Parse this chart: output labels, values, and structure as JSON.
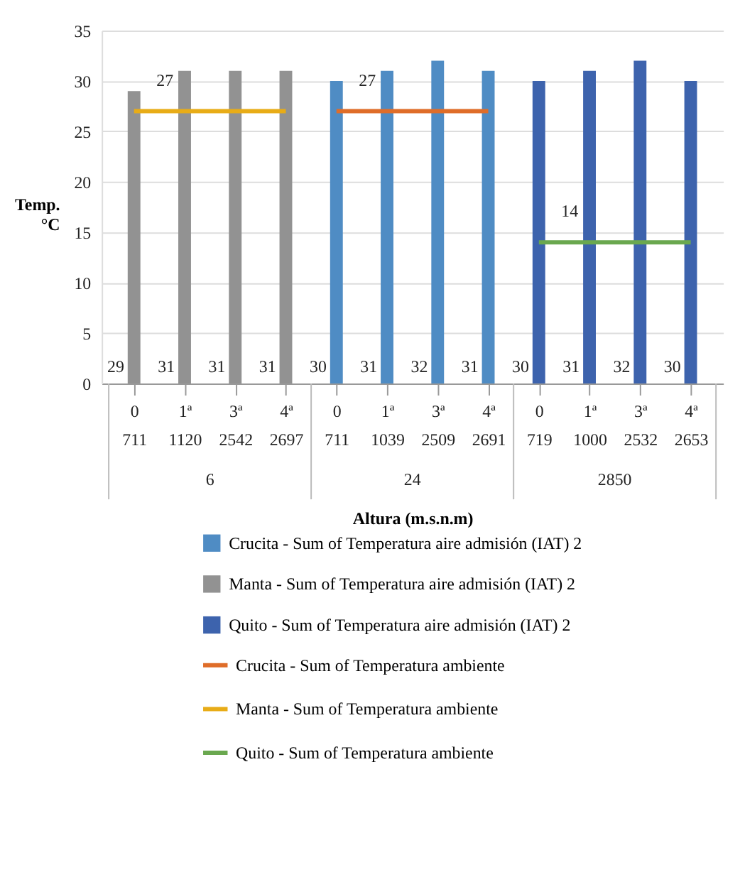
{
  "chart_data": {
    "type": "bar",
    "categories": [
      "0\n711",
      "1ª\n1120",
      "3ª\n2542",
      "4ª\n2697",
      "0\n711",
      "1ª\n1039",
      "3ª\n2509",
      "4ª\n2691",
      "0\n719",
      "1ª\n1000",
      "3ª\n2532",
      "4ª\n2653"
    ],
    "series": [
      {
        "name": "Crucita - Sum of Temperatura aire admisión (IAT) 2",
        "color": "#4f8cc4",
        "values": [
          null,
          null,
          null,
          null,
          30,
          31,
          32,
          31,
          null,
          null,
          null,
          null
        ],
        "value_labels": [
          null,
          null,
          null,
          null,
          "30",
          "31",
          "32",
          "31",
          null,
          null,
          null,
          null
        ]
      },
      {
        "name": "Manta - Sum of Temperatura aire admisión (IAT) 2",
        "color": "#929292",
        "values": [
          29,
          31,
          31,
          31,
          null,
          null,
          null,
          null,
          null,
          null,
          null,
          null
        ],
        "value_labels": [
          "29",
          "31",
          "31",
          "31",
          null,
          null,
          null,
          null,
          null,
          null,
          null,
          null
        ]
      },
      {
        "name": "Quito - Sum of Temperatura aire admisión (IAT) 2",
        "color": "#3d63ad",
        "values": [
          null,
          null,
          null,
          null,
          null,
          null,
          null,
          null,
          30,
          31,
          32,
          30
        ],
        "value_labels": [
          null,
          null,
          null,
          null,
          null,
          null,
          null,
          null,
          "30",
          "31",
          "32",
          "30"
        ]
      },
      {
        "name": "Crucita - Sum of Temperatura ambiente",
        "type": "line",
        "color": "#df6d29",
        "values": [
          null,
          null,
          null,
          null,
          27,
          27,
          27,
          27,
          null,
          null,
          null,
          null
        ],
        "value_labels": [
          null,
          null,
          null,
          null,
          null,
          "27",
          null,
          null,
          null,
          null,
          null,
          null
        ]
      },
      {
        "name": "Manta - Sum of Temperatura ambiente",
        "type": "line",
        "color": "#e8ac17",
        "values": [
          27,
          27,
          27,
          27,
          null,
          null,
          null,
          null,
          null,
          null,
          null,
          null
        ],
        "value_labels": [
          null,
          "27",
          null,
          null,
          null,
          null,
          null,
          null,
          null,
          null,
          null,
          null
        ]
      },
      {
        "name": "Quito - Sum of Temperatura ambiente",
        "type": "line",
        "color": "#6aa84f",
        "values": [
          null,
          null,
          null,
          null,
          null,
          null,
          null,
          null,
          14,
          14,
          14,
          14
        ],
        "value_labels": [
          null,
          null,
          null,
          null,
          null,
          null,
          null,
          null,
          null,
          "14",
          null,
          null
        ]
      }
    ],
    "ylim": [
      0,
      35
    ],
    "yticks": [
      0,
      5,
      10,
      15,
      20,
      25,
      30,
      35
    ],
    "ylabel": "Temp. °C",
    "xlabel": "Altura (m.s.n.m)",
    "annotations": [
      "6",
      "24",
      "2850"
    ],
    "grid": "y",
    "legend": "bottom"
  }
}
